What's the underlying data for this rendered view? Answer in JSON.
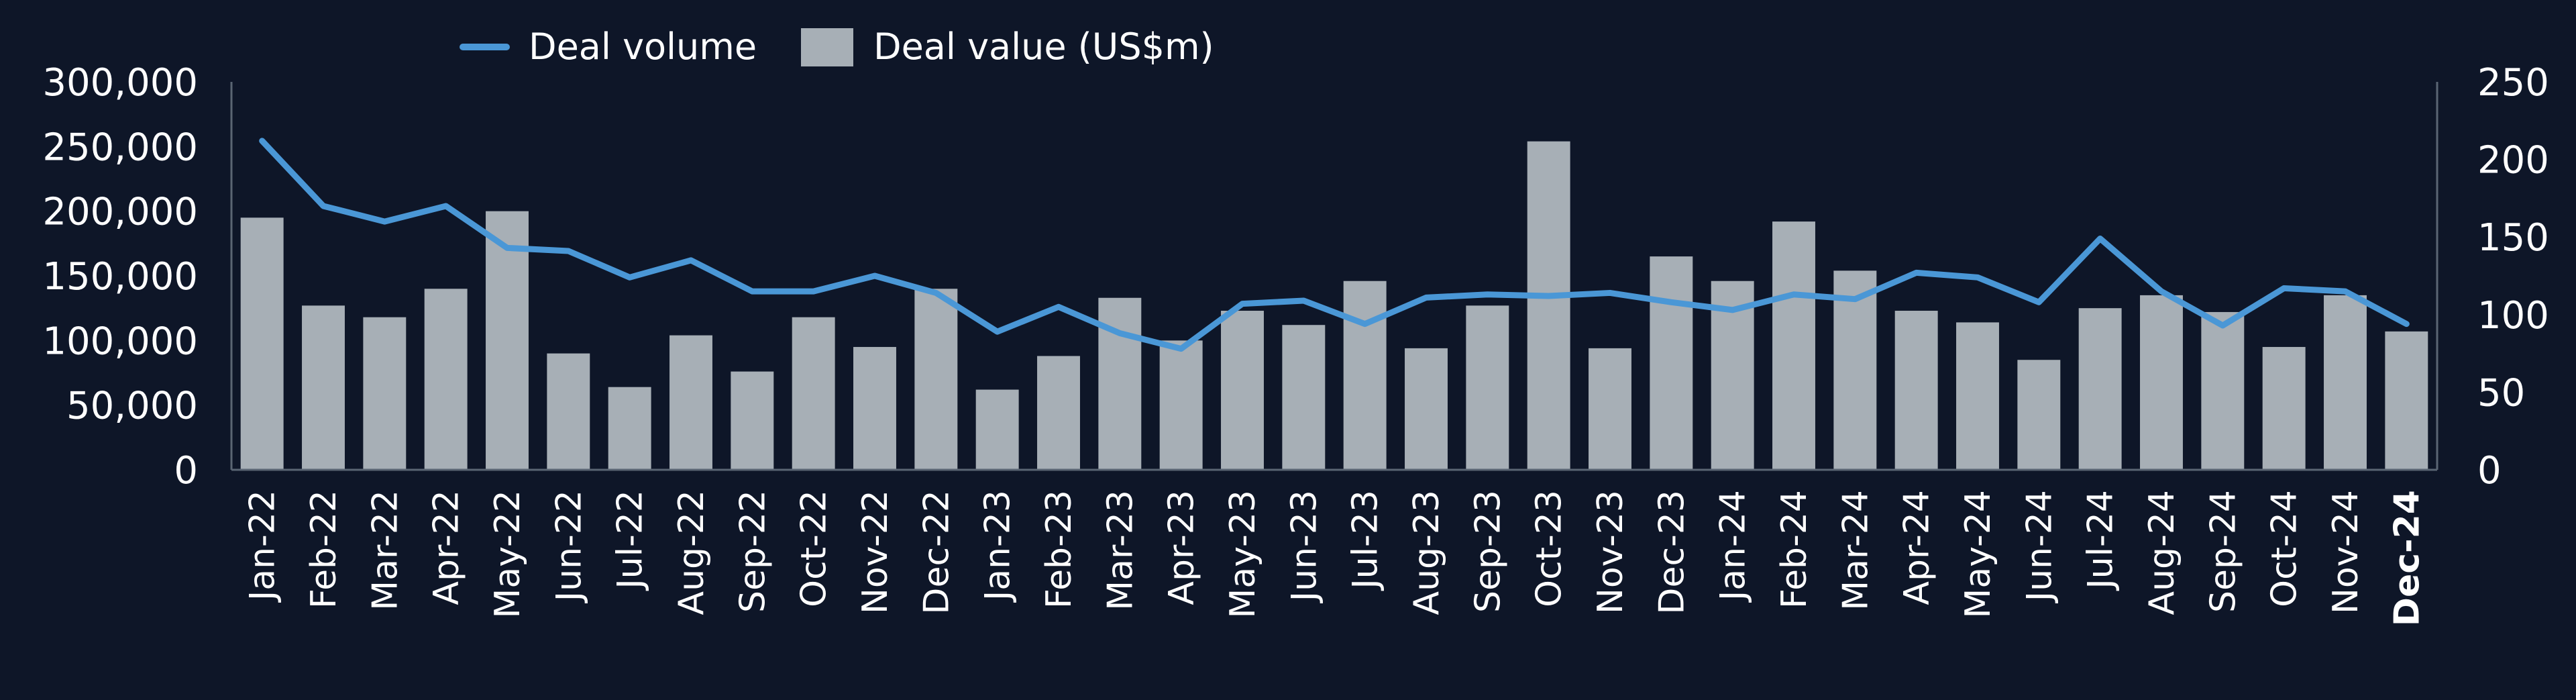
{
  "chart_data": {
    "type": "bar+line",
    "categories": [
      "Jan-22",
      "Feb-22",
      "Mar-22",
      "Apr-22",
      "May-22",
      "Jun-22",
      "Jul-22",
      "Aug-22",
      "Sep-22",
      "Oct-22",
      "Nov-22",
      "Dec-22",
      "Jan-23",
      "Feb-23",
      "Mar-23",
      "Apr-23",
      "May-23",
      "Jun-23",
      "Jul-23",
      "Aug-23",
      "Sep-23",
      "Oct-23",
      "Nov-23",
      "Dec-23",
      "Jan-24",
      "Feb-24",
      "Mar-24",
      "Apr-24",
      "May-24",
      "Jun-24",
      "Jul-24",
      "Aug-24",
      "Sep-24",
      "Oct-24",
      "Nov-24",
      "Dec-24"
    ],
    "highlighted_category": "Dec-24",
    "series": [
      {
        "name": "Deal value (US$m)",
        "type": "bar",
        "axis": "left",
        "color": "#a7afb6",
        "values": [
          195000,
          127000,
          118000,
          140000,
          200000,
          90000,
          64000,
          104000,
          76000,
          118000,
          95000,
          140000,
          62000,
          88000,
          133000,
          100000,
          123000,
          112000,
          146000,
          94000,
          127000,
          254000,
          94000,
          165000,
          146000,
          192000,
          154000,
          123000,
          114000,
          85000,
          125000,
          135000,
          122000,
          95000,
          135000,
          107000
        ]
      },
      {
        "name": "Deal volume",
        "type": "line",
        "axis": "right",
        "color": "#4a97d6",
        "values": [
          212,
          170,
          160,
          170,
          143,
          141,
          124,
          135,
          115,
          115,
          125,
          114,
          89,
          105,
          88,
          78,
          107,
          109,
          94,
          111,
          113,
          112,
          114,
          108,
          103,
          113,
          110,
          127,
          124,
          108,
          149,
          115,
          93,
          117,
          115,
          94
        ]
      }
    ],
    "left_axis": {
      "ylim": [
        0,
        300000
      ],
      "ticks": [
        "0",
        "50,000",
        "100,000",
        "150,000",
        "200,000",
        "250,000",
        "300,000"
      ]
    },
    "right_axis": {
      "ylim": [
        0,
        250
      ],
      "ticks": [
        "0",
        "50",
        "100",
        "150",
        "200",
        "250"
      ]
    },
    "legend": {
      "placement": "top",
      "items": [
        "Deal volume",
        "Deal value (US$m)"
      ]
    },
    "grid": false,
    "title": "",
    "xlabel": "",
    "ylabel": ""
  },
  "colors": {
    "background": "#0e1628",
    "axis": "#5a6573",
    "text": "#ffffff"
  }
}
